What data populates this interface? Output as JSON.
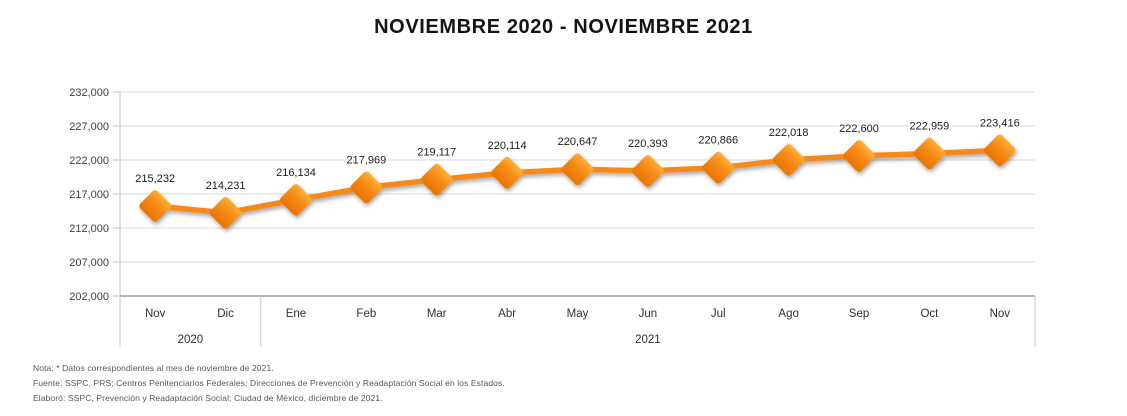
{
  "title": "NOVIEMBRE 2020 - NOVIEMBRE 2021",
  "chart_data": {
    "type": "line",
    "categories": [
      "Nov",
      "Dic",
      "Ene",
      "Feb",
      "Mar",
      "Abr",
      "May",
      "Jun",
      "Jul",
      "Ago",
      "Sep",
      "Oct",
      "Nov"
    ],
    "values": [
      215232,
      214231,
      216134,
      217969,
      219117,
      220114,
      220647,
      220393,
      220866,
      222018,
      222600,
      222959,
      223416
    ],
    "data_labels": [
      "215,232",
      "214,231",
      "216,134",
      "217,969",
      "219,117",
      "220,114",
      "220,647",
      "220,393",
      "220,866",
      "222,018",
      "222,600",
      "222,959",
      "223,416"
    ],
    "year_groups": [
      {
        "label": "2020",
        "span": 2
      },
      {
        "label": "2021",
        "span": 11
      }
    ],
    "ylim": [
      202000,
      232000
    ],
    "ytick_step": 5000,
    "ytick_labels": [
      "202,000",
      "207,000",
      "212,000",
      "217,000",
      "222,000",
      "227,000",
      "232,000"
    ],
    "grid": true,
    "legend": "none",
    "line_color": "#F6891E",
    "marker": "diamond",
    "marker_gradient_top": "#FFAD33",
    "marker_gradient_mid": "#F68A18",
    "marker_gradient_bottom": "#E87500",
    "gridline_color": "#D9D9D9",
    "axis_line_color": "#9A9A9A"
  },
  "notes": {
    "nota": "Nota: * Datos correspondientes al mes de noviembre de 2021.",
    "fuente": "Fuente: SSPC, PRS; Centros Penitenciarios Federales; Direcciones de Prevención y Readaptación Social en los Estados.",
    "elaboro": "Elaboró: SSPC, Prevención y Readaptación Social; Ciudad de México, diciembre de 2021."
  }
}
